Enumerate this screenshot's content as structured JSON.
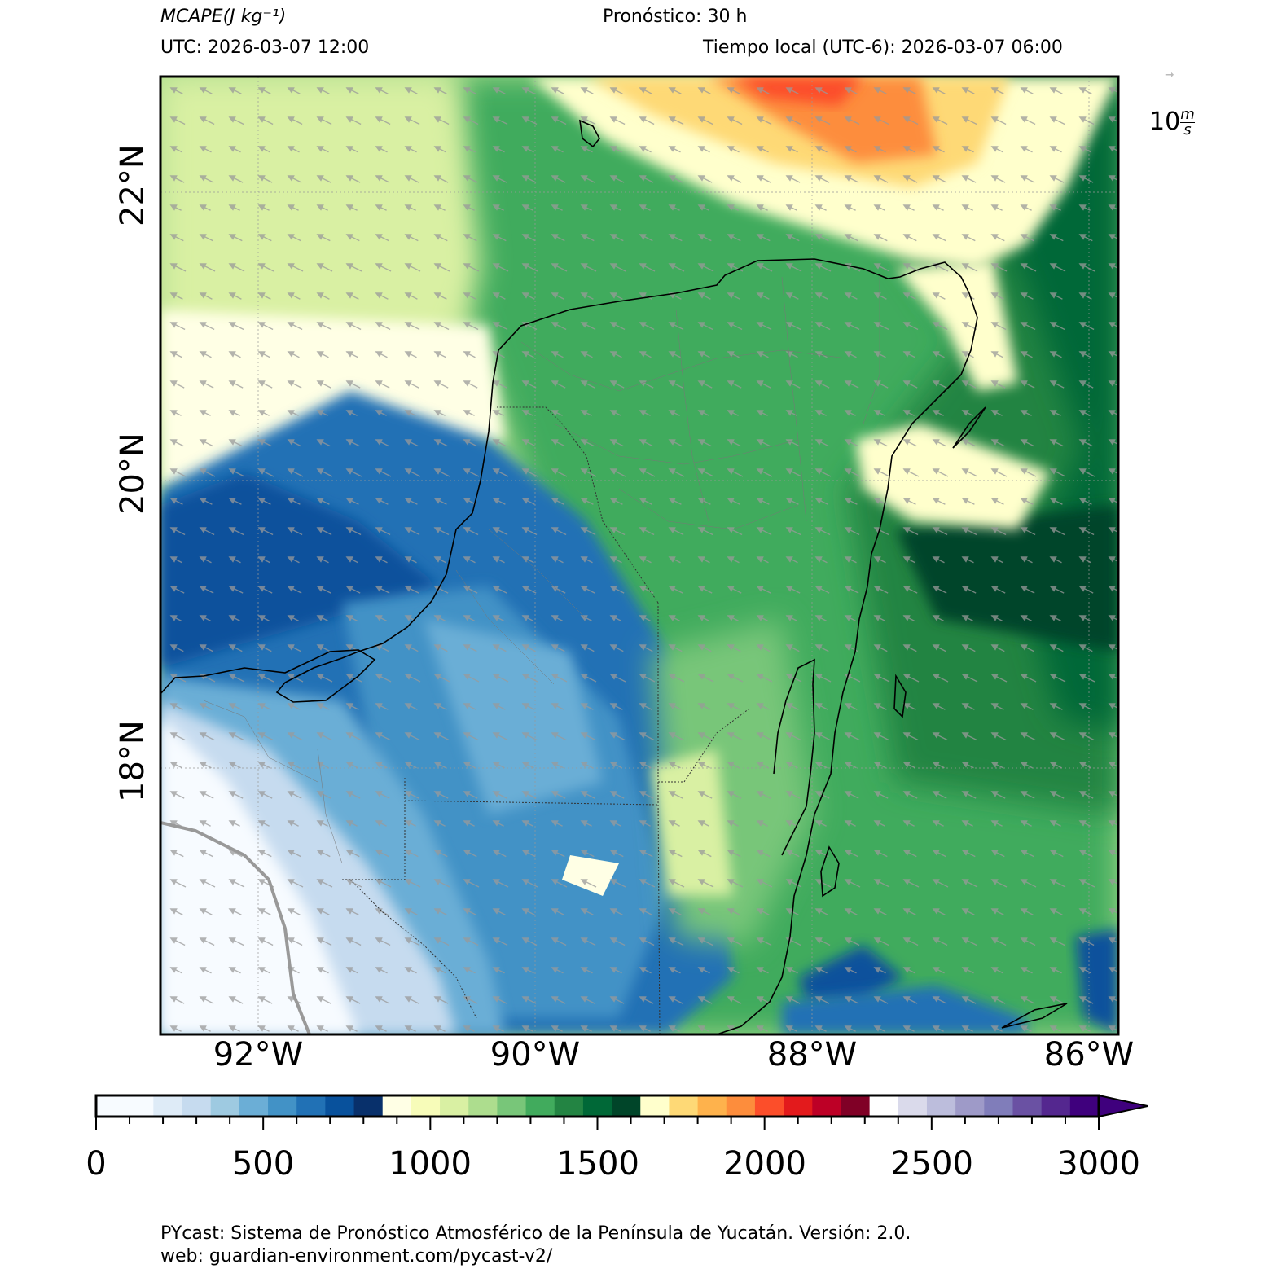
{
  "header": {
    "variable_name": "MCAPE",
    "variable_unit": "(J kg⁻¹)",
    "forecast": "Pronóstico: 30 h",
    "utc": "UTC:  2026-03-07 12:00",
    "local": "Tiempo local (UTC-6): 2026-03-07 06:00"
  },
  "wind_key": {
    "value": "10",
    "unit_num": "m",
    "unit_den": "s"
  },
  "map": {
    "lat_labels": [
      "22°N",
      "20°N",
      "18°N"
    ],
    "lon_labels": [
      "92°W",
      "90°W",
      "88°W",
      "86°W"
    ],
    "lat_values": [
      22,
      20,
      18
    ],
    "lon_values": [
      -92,
      -90,
      -88,
      -86
    ],
    "extent": {
      "lon_min": -92.7,
      "lon_max": -85.9,
      "lat_min": 16.3,
      "lat_max": 22.9
    },
    "wind_direction": "from east-southeast (arrows pointing west-northwest)"
  },
  "colorbar": {
    "ticks": [
      "0",
      "500",
      "1000",
      "1500",
      "2000",
      "2500",
      "3000"
    ],
    "tick_values": [
      0,
      500,
      1000,
      1500,
      2000,
      2500,
      3000
    ],
    "step": 100,
    "extend": "max",
    "colors": [
      "#f7fbff",
      "#f7fbff",
      "#deebf7",
      "#c6dbef",
      "#9ecae1",
      "#6baed6",
      "#4292c6",
      "#2171b5",
      "#08519c",
      "#08306b",
      "#ffffe5",
      "#f7fcb9",
      "#d9f0a3",
      "#addd8e",
      "#78c679",
      "#41ab5d",
      "#238443",
      "#006837",
      "#004529",
      "#ffffcc",
      "#fed976",
      "#feb24c",
      "#fd8d3c",
      "#fc4e2a",
      "#e31a1c",
      "#bd0026",
      "#800026",
      "#ffffff",
      "#dadaeb",
      "#bcbddc",
      "#9e9ac8",
      "#807dba",
      "#6a51a3",
      "#54278f",
      "#3f007d"
    ]
  },
  "footer": {
    "line1": "PYcast: Sistema de Pronóstico Atmosférico de la Península de Yucatán. Versión: 2.0.",
    "line2": "web: guardian-environment.com/pycast-v2/"
  }
}
